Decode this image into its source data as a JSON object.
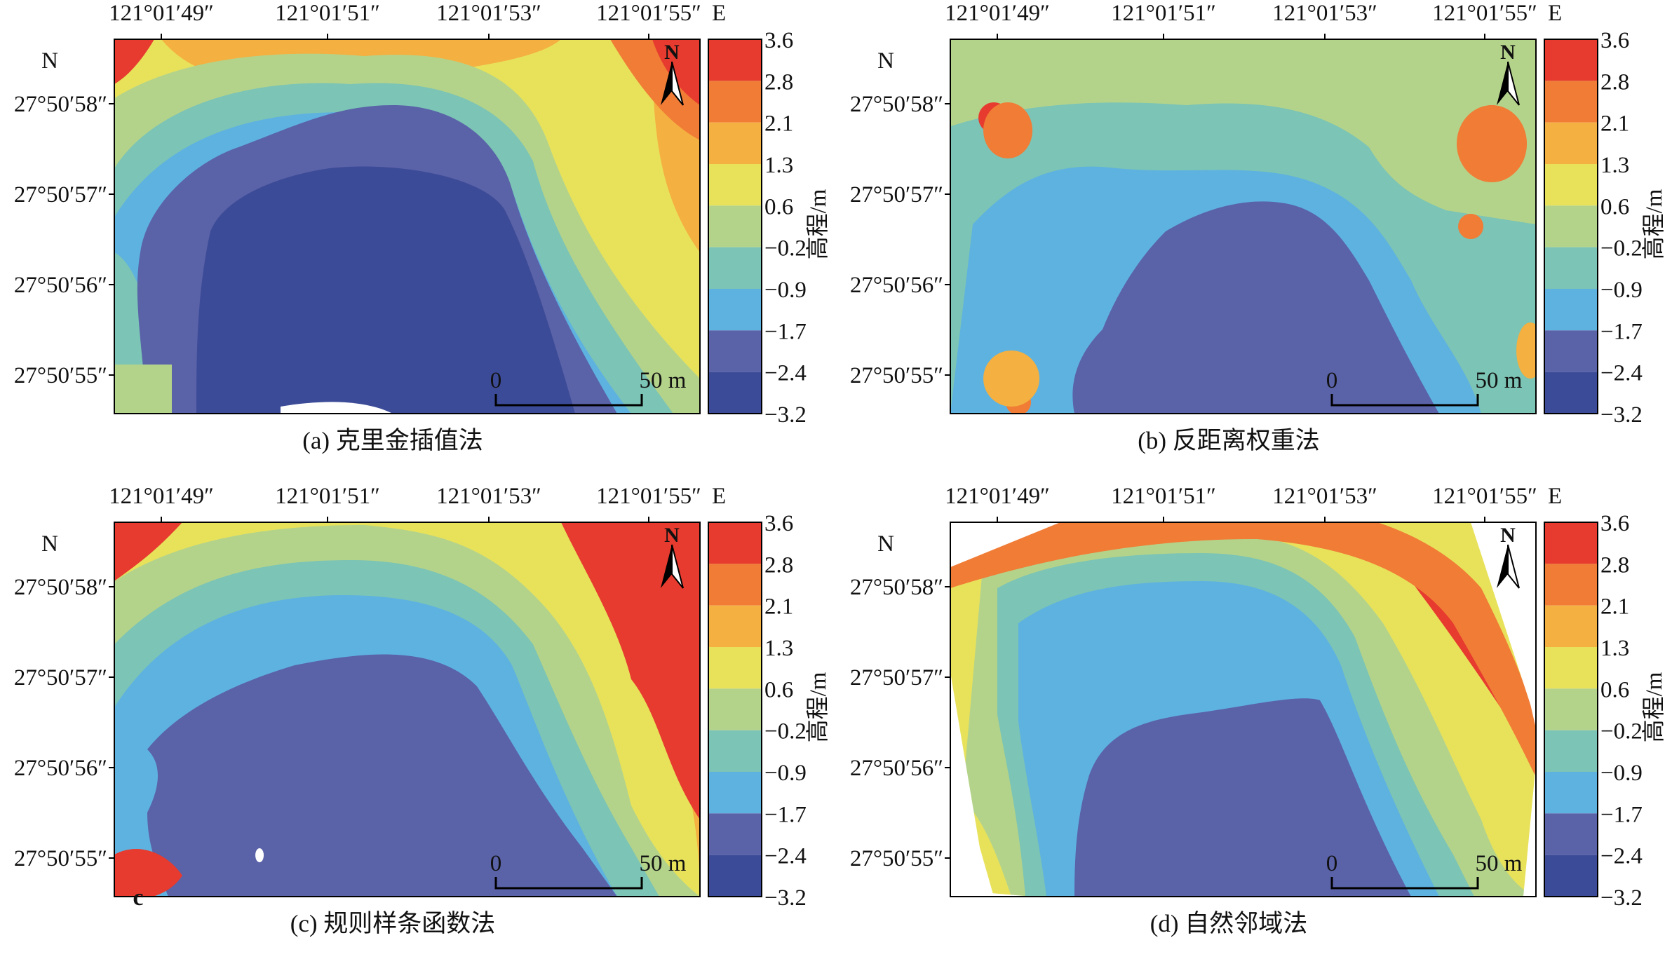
{
  "colorbar": {
    "levels": [
      "3.6",
      "2.8",
      "2.1",
      "1.3",
      "0.6",
      "−0.2",
      "−0.9",
      "−1.7",
      "−2.4",
      "−3.2"
    ],
    "colors": [
      "#e63b2e",
      "#f07c36",
      "#f4b040",
      "#e8e25b",
      "#b4d38a",
      "#7cc4b5",
      "#5eb2e0",
      "#5a62a8",
      "#3c4b97"
    ],
    "label": "高程/m"
  },
  "axes": {
    "longitudes": [
      "121°01′49″",
      "121°01′51″",
      "121°01′53″",
      "121°01′55″"
    ],
    "lon_dir": "E",
    "latitudes": [
      "27°50′58″",
      "27°50′57″",
      "27°50′56″",
      "27°50′55″"
    ],
    "lat_dir": "N"
  },
  "scale_bar": {
    "start": "0",
    "end": "50 m"
  },
  "north_arrow": "N",
  "panels": [
    {
      "caption": "(a) 克里金插值法",
      "inset": ""
    },
    {
      "caption": "(b) 反距离权重法",
      "inset": ""
    },
    {
      "caption": "(c) 规则样条函数法",
      "inset": "c"
    },
    {
      "caption": "(d) 自然邻域法",
      "inset": ""
    }
  ]
}
